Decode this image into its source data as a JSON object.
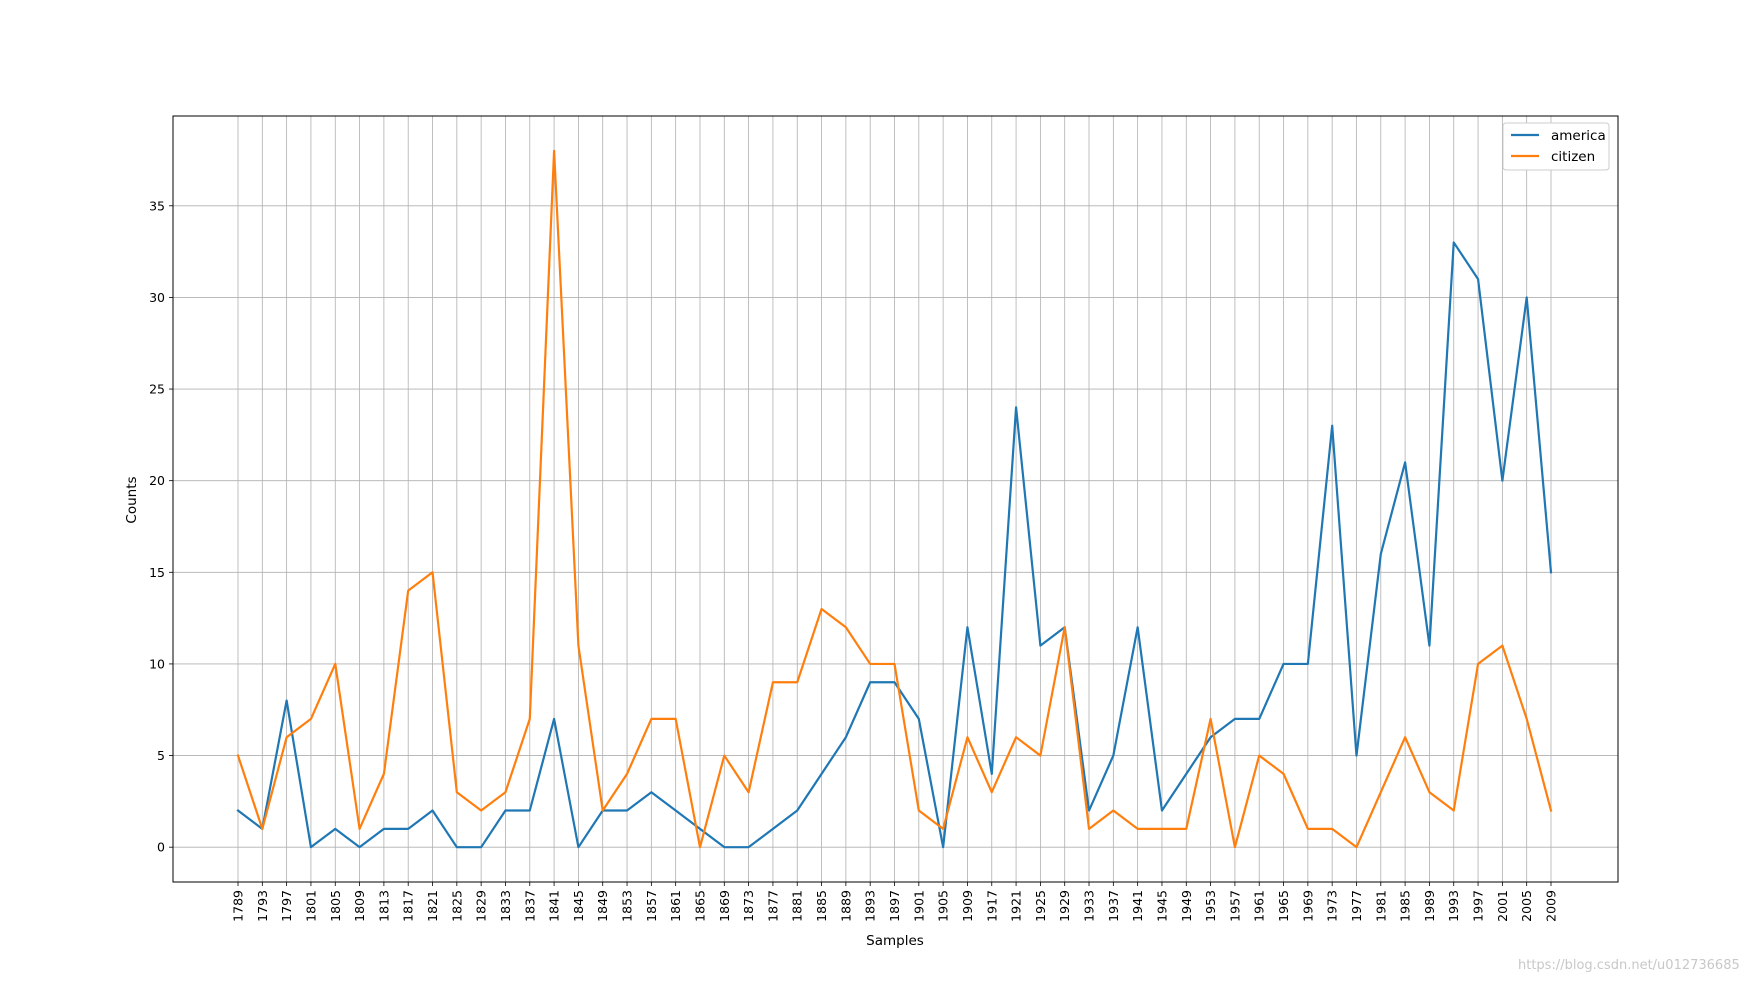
{
  "chart_data": {
    "type": "line",
    "xlabel": "Samples",
    "ylabel": "Counts",
    "categories": [
      "1789",
      "1793",
      "1797",
      "1801",
      "1805",
      "1809",
      "1813",
      "1817",
      "1821",
      "1825",
      "1829",
      "1833",
      "1837",
      "1841",
      "1845",
      "1849",
      "1853",
      "1857",
      "1861",
      "1865",
      "1869",
      "1873",
      "1877",
      "1881",
      "1885",
      "1889",
      "1893",
      "1897",
      "1901",
      "1905",
      "1909",
      "1917",
      "1921",
      "1925",
      "1929",
      "1933",
      "1937",
      "1941",
      "1945",
      "1949",
      "1953",
      "1957",
      "1961",
      "1965",
      "1969",
      "1973",
      "1977",
      "1981",
      "1985",
      "1989",
      "1993",
      "1997",
      "2001",
      "2005",
      "2009"
    ],
    "series": [
      {
        "name": "america",
        "color": "#1f77b4",
        "values": [
          2,
          1,
          8,
          0,
          1,
          0,
          1,
          1,
          2,
          0,
          0,
          2,
          2,
          7,
          0,
          2,
          2,
          3,
          2,
          1,
          0,
          0,
          1,
          2,
          4,
          6,
          9,
          9,
          7,
          0,
          12,
          4,
          24,
          11,
          12,
          2,
          5,
          12,
          2,
          4,
          6,
          7,
          7,
          10,
          10,
          23,
          5,
          16,
          21,
          11,
          33,
          31,
          20,
          30,
          15
        ]
      },
      {
        "name": "citizen",
        "color": "#ff7f0e",
        "values": [
          5,
          1,
          6,
          7,
          10,
          1,
          4,
          14,
          15,
          3,
          2,
          3,
          7,
          38,
          11,
          2,
          4,
          7,
          7,
          0,
          5,
          3,
          9,
          9,
          13,
          12,
          10,
          10,
          2,
          1,
          6,
          3,
          6,
          5,
          12,
          1,
          2,
          1,
          1,
          1,
          7,
          0,
          5,
          4,
          1,
          1,
          0,
          3,
          6,
          3,
          2,
          10,
          11,
          7,
          2
        ]
      }
    ],
    "yticks": [
      0,
      5,
      10,
      15,
      20,
      25,
      30,
      35
    ],
    "ylim": [
      -1.9,
      39.9
    ],
    "grid": true,
    "legend_position": "top-right"
  },
  "watermark": "https://blog.csdn.net/u012736685"
}
